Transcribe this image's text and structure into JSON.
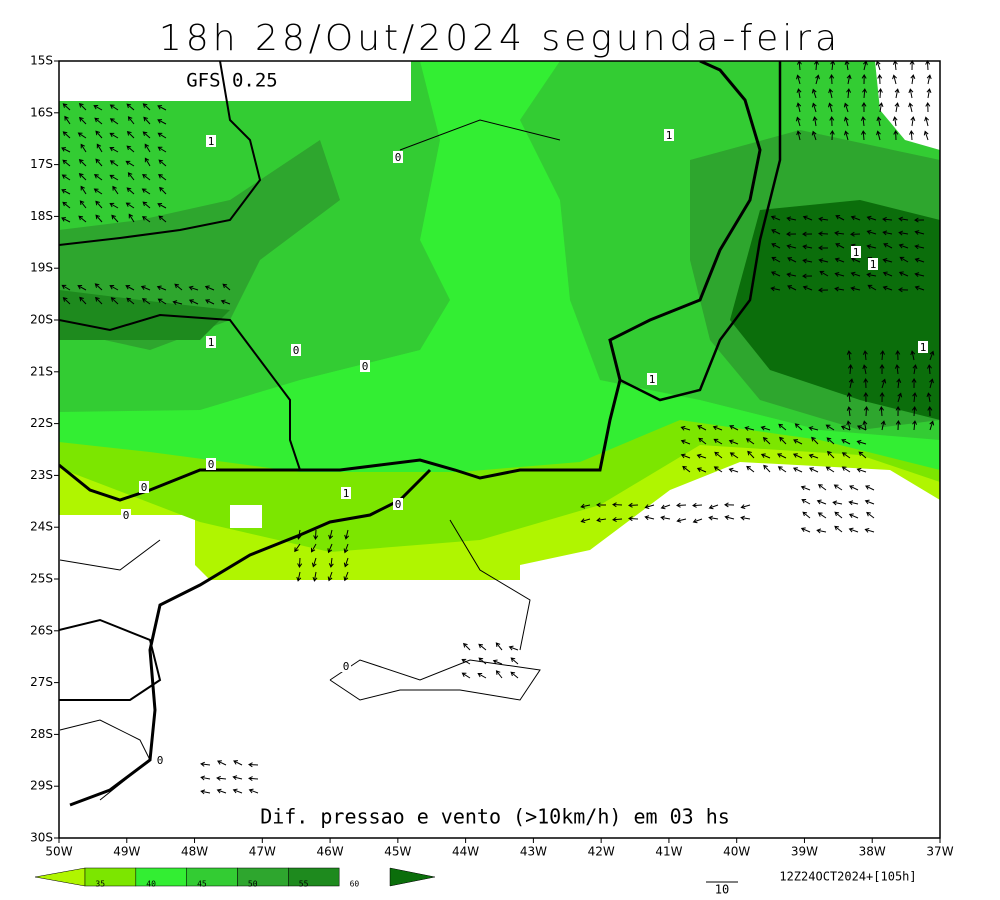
{
  "title": "18h 28/Out/2024 segunda-feira",
  "model": "GFS 0.25",
  "lat_labels": [
    "15S",
    "16S",
    "17S",
    "18S",
    "19S",
    "20S",
    "21S",
    "22S",
    "23S",
    "24S",
    "25S",
    "26S",
    "27S",
    "28S",
    "29S",
    "30S"
  ],
  "lon_labels": [
    "50W",
    "49W",
    "48W",
    "47W",
    "46W",
    "45W",
    "44W",
    "43W",
    "42W",
    "41W",
    "40W",
    "39W",
    "38W",
    "37W"
  ],
  "caption": "Dif. pressao e vento (>10km/h) em 03 hs",
  "colorbar_labels": [
    "35",
    "40",
    "45",
    "50",
    "55",
    "60"
  ],
  "vector_scale": "10",
  "run_info": "12Z24OCT2024+[105h]",
  "contour_labels": [
    "1",
    "0",
    "1",
    "1",
    "1",
    "1",
    "1",
    "0",
    "0",
    "1",
    "0",
    "0",
    "0",
    "1",
    "0",
    "0",
    "0",
    "0"
  ]
}
